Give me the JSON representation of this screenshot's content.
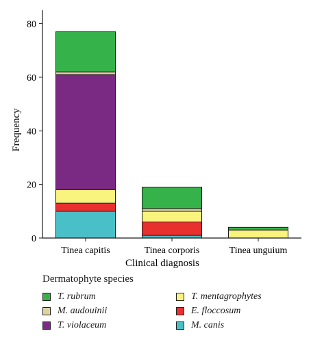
{
  "chart_data": {
    "type": "bar",
    "stacked": true,
    "title": "",
    "xlabel": "Clinical diagnosis",
    "ylabel": "Frequency",
    "ylim": [
      0,
      85
    ],
    "yticks": [
      "0",
      "20",
      "40",
      "60",
      "80"
    ],
    "categories": [
      "Tinea capitis",
      "Tinea corporis",
      "Tinea unguium"
    ],
    "series": [
      {
        "name": "M. canis",
        "color": "#49c0c8",
        "values": [
          10,
          1,
          0
        ]
      },
      {
        "name": "E. floccosum",
        "color": "#e8302e",
        "values": [
          3,
          5,
          0
        ]
      },
      {
        "name": "T. mentagrophytes",
        "color": "#f9f47d",
        "values": [
          5,
          4,
          3
        ]
      },
      {
        "name": "T. violaceum",
        "color": "#7b2a84",
        "values": [
          43,
          0,
          0
        ]
      },
      {
        "name": "M. audouinii",
        "color": "#dcd3a0",
        "values": [
          1,
          1,
          0
        ]
      },
      {
        "name": "T. rubrum",
        "color": "#35b24a",
        "values": [
          15,
          8,
          1
        ]
      }
    ]
  },
  "legend": {
    "title": "Dermatophyte species",
    "items": [
      {
        "label": "T. rubrum",
        "color": "#35b24a"
      },
      {
        "label": "T. mentagrophytes",
        "color": "#f9f47d"
      },
      {
        "label": "M. audouinii",
        "color": "#dcd3a0"
      },
      {
        "label": "E. floccosum",
        "color": "#e8302e"
      },
      {
        "label": "T. violaceum",
        "color": "#7b2a84"
      },
      {
        "label": "M. canis",
        "color": "#49c0c8"
      }
    ]
  }
}
